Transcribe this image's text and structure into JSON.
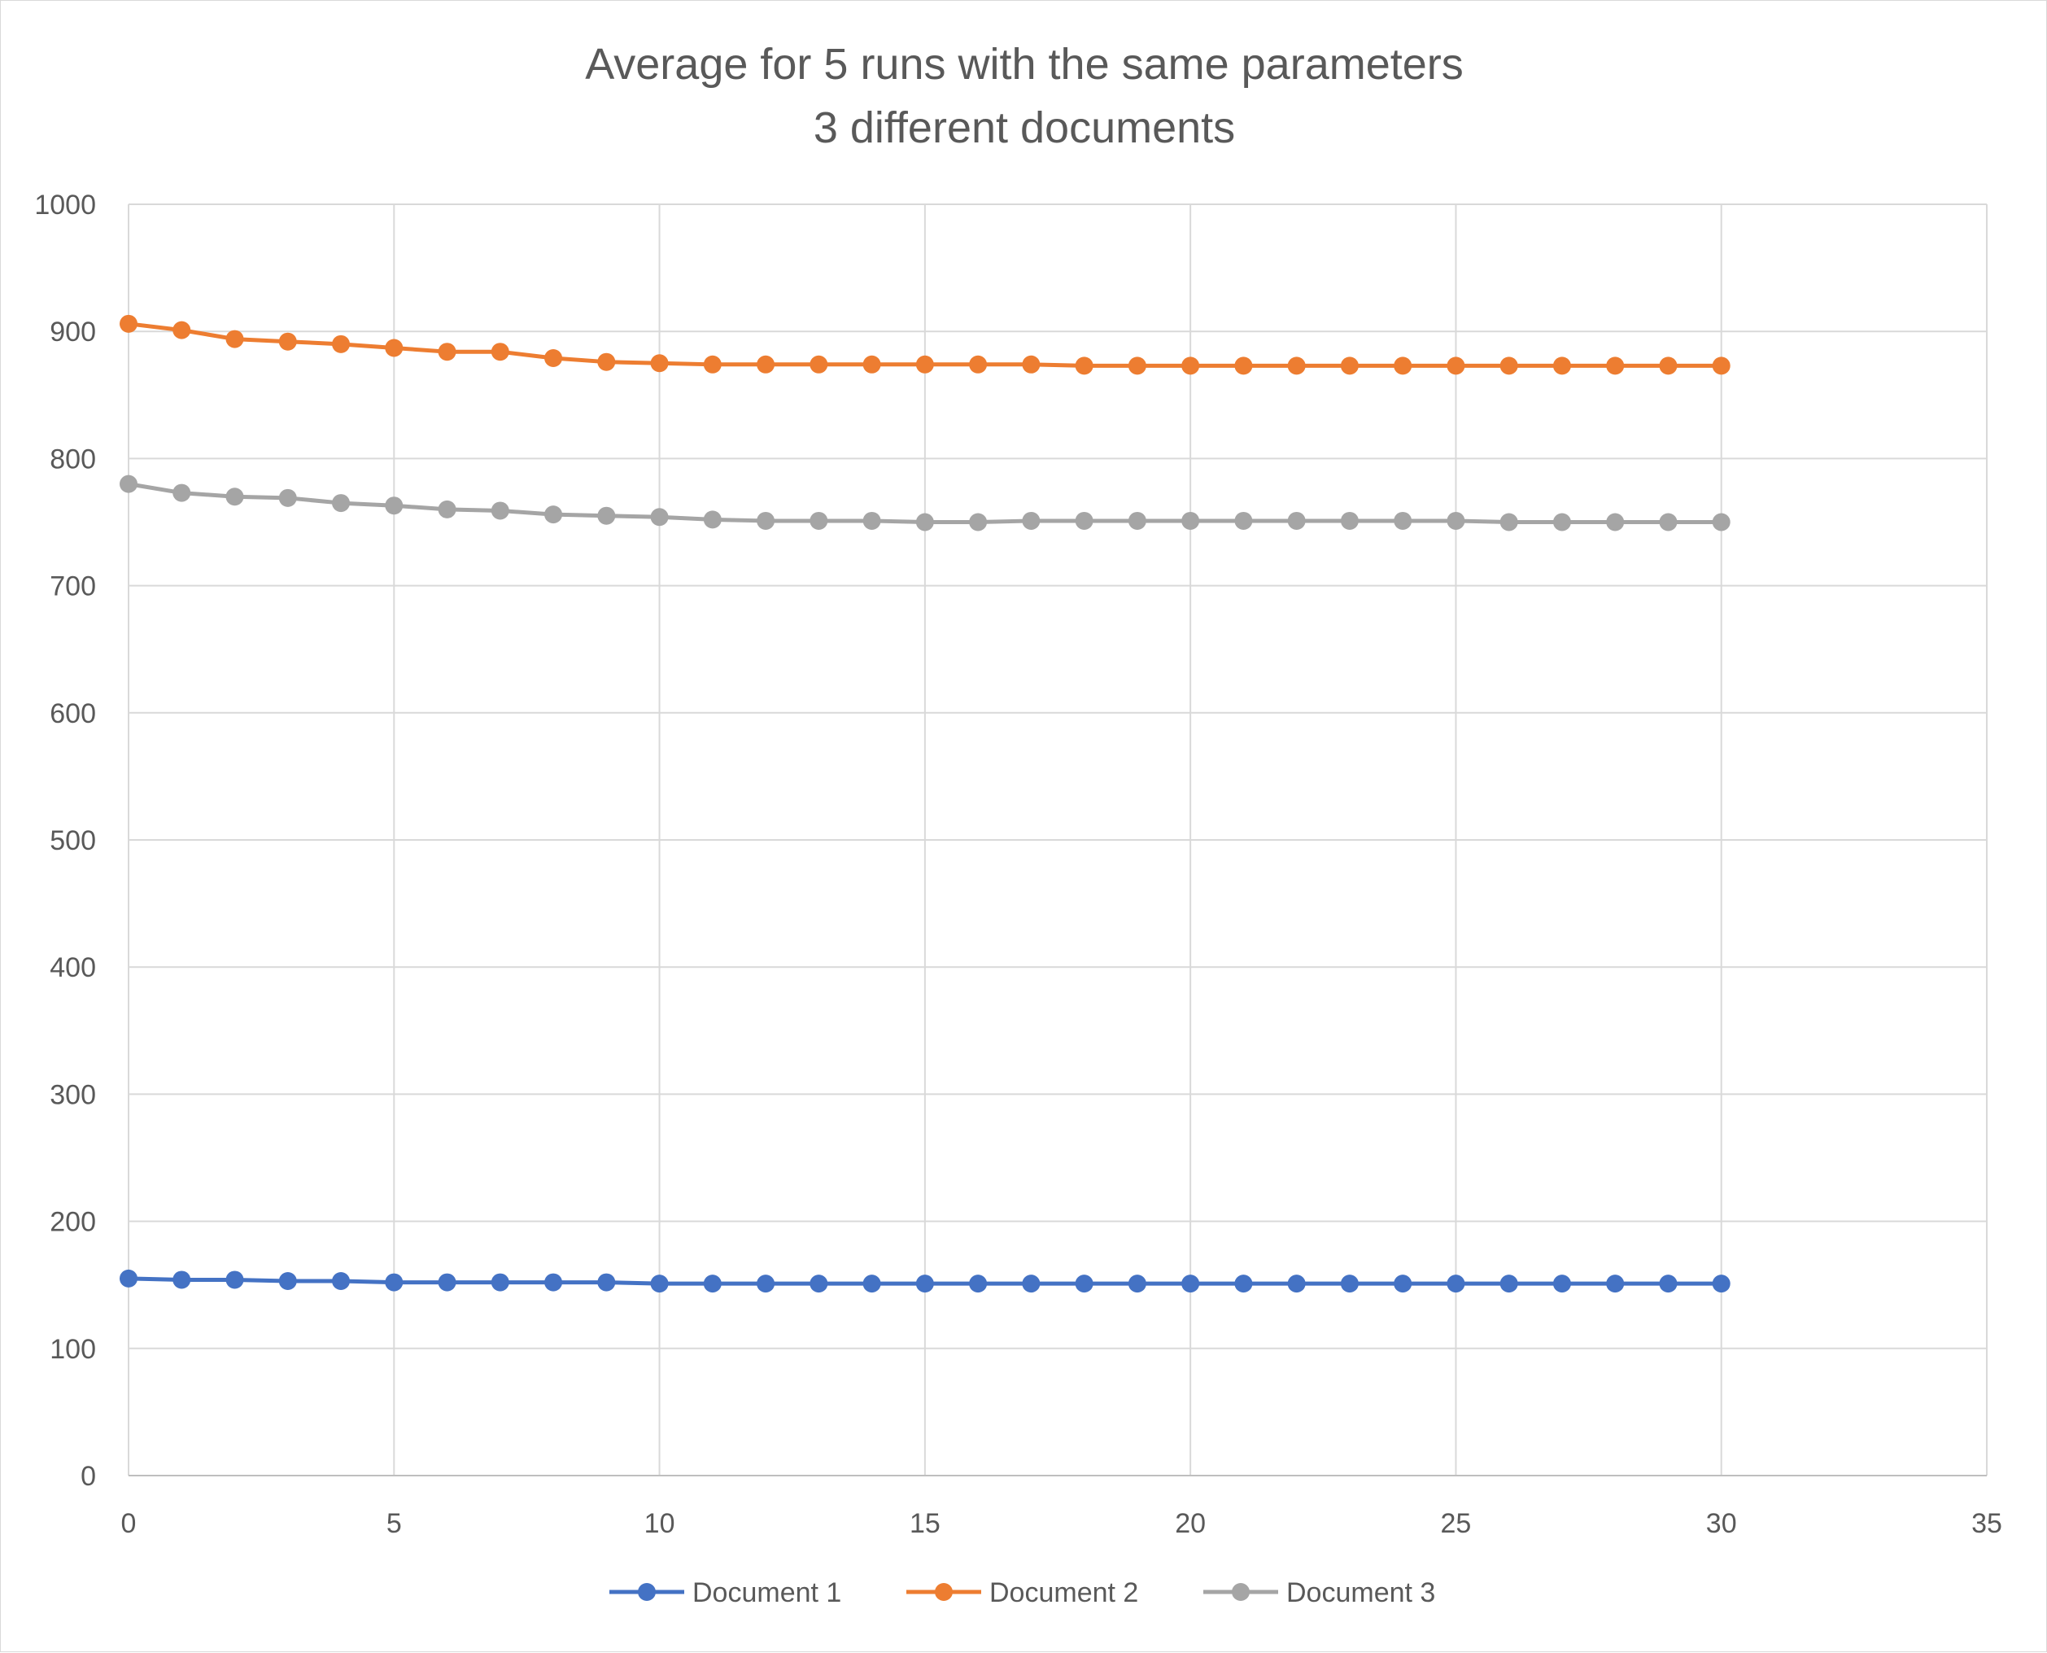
{
  "chart_data": {
    "type": "line",
    "title": "Average for 5 runs with the same parameters",
    "subtitle": "3 different documents",
    "xlim": [
      0,
      35
    ],
    "ylim": [
      0,
      1000
    ],
    "x_ticks": [
      "0",
      "5",
      "10",
      "15",
      "20",
      "25",
      "30",
      "35"
    ],
    "y_ticks": [
      "0",
      "100",
      "200",
      "300",
      "400",
      "500",
      "600",
      "700",
      "800",
      "900",
      "1000"
    ],
    "grid": true,
    "legend_position": "bottom",
    "x": [
      0,
      1,
      2,
      3,
      4,
      5,
      6,
      7,
      8,
      9,
      10,
      11,
      12,
      13,
      14,
      15,
      16,
      17,
      18,
      19,
      20,
      21,
      22,
      23,
      24,
      25,
      26,
      27,
      28,
      29,
      30
    ],
    "series": [
      {
        "name": "Document 1",
        "color": "#4472c4",
        "values": [
          155,
          154,
          154,
          153,
          153,
          152,
          152,
          152,
          152,
          152,
          151,
          151,
          151,
          151,
          151,
          151,
          151,
          151,
          151,
          151,
          151,
          151,
          151,
          151,
          151,
          151,
          151,
          151,
          151,
          151,
          151
        ]
      },
      {
        "name": "Document 2",
        "color": "#ed7d31",
        "values": [
          906,
          901,
          894,
          892,
          890,
          887,
          884,
          884,
          879,
          876,
          875,
          874,
          874,
          874,
          874,
          874,
          874,
          874,
          873,
          873,
          873,
          873,
          873,
          873,
          873,
          873,
          873,
          873,
          873,
          873,
          873
        ]
      },
      {
        "name": "Document 3",
        "color": "#a5a5a5",
        "values": [
          780,
          773,
          770,
          769,
          765,
          763,
          760,
          759,
          756,
          755,
          754,
          752,
          751,
          751,
          751,
          750,
          750,
          751,
          751,
          751,
          751,
          751,
          751,
          751,
          751,
          751,
          750,
          750,
          750,
          750,
          750
        ]
      }
    ]
  }
}
